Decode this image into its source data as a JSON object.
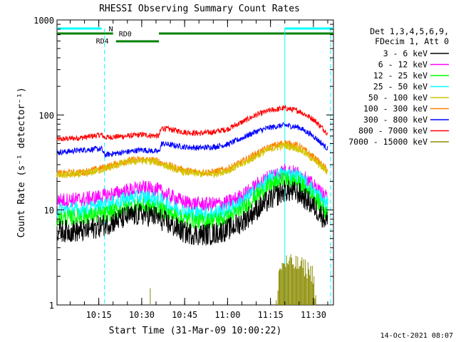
{
  "chart_data": {
    "type": "line",
    "title": "RHESSI Observing Summary Count Rates",
    "xlabel": "Start Time (31-Mar-09 10:00:22)",
    "ylabel": "Count Rate (s⁻¹ detector⁻¹)",
    "yscale": "log",
    "ylim": [
      1,
      1000
    ],
    "xlim_minutes_of_day": [
      600.4,
      697
    ],
    "x_ticks": [
      "10:15",
      "10:30",
      "10:45",
      "11:00",
      "11:15",
      "11:30"
    ],
    "y_ticks": [
      "1",
      "10",
      "100",
      "1000"
    ],
    "legend_header": [
      "Det 1,3,4,5,6,9,",
      "FDecim 1, Att 0"
    ],
    "legend_position": "right",
    "footer_date": "14-Oct-2021 08:07",
    "markers": {
      "n_label": "N",
      "rd0_label": "RD0",
      "rd4_label": "RD4",
      "cyan_dashed_times": [
        "10:17",
        "11:36"
      ],
      "cyan_solid_times": [
        "11:20"
      ]
    },
    "series": [
      {
        "name": "3 - 6 keV",
        "color": "#000000",
        "points": [
          [
            "10:00",
            6
          ],
          [
            "10:10",
            6
          ],
          [
            "10:17",
            7
          ],
          [
            "10:25",
            8.5
          ],
          [
            "10:30",
            9
          ],
          [
            "10:35",
            8.5
          ],
          [
            "10:40",
            7
          ],
          [
            "10:45",
            5.8
          ],
          [
            "10:50",
            5.5
          ],
          [
            "10:55",
            5.6
          ],
          [
            "11:00",
            6.2
          ],
          [
            "11:05",
            7.5
          ],
          [
            "11:10",
            10
          ],
          [
            "11:15",
            13
          ],
          [
            "11:20",
            16
          ],
          [
            "11:25",
            15
          ],
          [
            "11:30",
            11
          ],
          [
            "11:35",
            7.5
          ]
        ]
      },
      {
        "name": "6 - 12 keV",
        "color": "#ff00ff",
        "points": [
          [
            "10:00",
            12.5
          ],
          [
            "10:10",
            13
          ],
          [
            "10:17",
            14
          ],
          [
            "10:25",
            16
          ],
          [
            "10:30",
            17
          ],
          [
            "10:35",
            16.5
          ],
          [
            "10:40",
            14
          ],
          [
            "10:45",
            12
          ],
          [
            "10:50",
            11.5
          ],
          [
            "10:55",
            11.5
          ],
          [
            "11:00",
            12
          ],
          [
            "11:05",
            14
          ],
          [
            "11:10",
            18
          ],
          [
            "11:15",
            23
          ],
          [
            "11:20",
            26
          ],
          [
            "11:25",
            24
          ],
          [
            "11:30",
            18
          ],
          [
            "11:35",
            13
          ]
        ]
      },
      {
        "name": "12 - 25 keV",
        "color": "#00ff00",
        "points": [
          [
            "10:00",
            8
          ],
          [
            "10:10",
            8.5
          ],
          [
            "10:17",
            9
          ],
          [
            "10:25",
            10.5
          ],
          [
            "10:30",
            11
          ],
          [
            "10:35",
            10.5
          ],
          [
            "10:40",
            9
          ],
          [
            "10:45",
            8
          ],
          [
            "10:50",
            7.5
          ],
          [
            "10:55",
            7.8
          ],
          [
            "11:00",
            8.2
          ],
          [
            "11:05",
            10
          ],
          [
            "11:10",
            14
          ],
          [
            "11:15",
            18
          ],
          [
            "11:20",
            21
          ],
          [
            "11:25",
            19
          ],
          [
            "11:30",
            14
          ],
          [
            "11:35",
            9
          ]
        ]
      },
      {
        "name": "25 - 50 keV",
        "color": "#00ffff",
        "points": [
          [
            "10:00",
            10
          ],
          [
            "10:10",
            10
          ],
          [
            "10:17",
            11
          ],
          [
            "10:25",
            13
          ],
          [
            "10:30",
            13.5
          ],
          [
            "10:35",
            13
          ],
          [
            "10:40",
            11
          ],
          [
            "10:45",
            9.5
          ],
          [
            "10:50",
            9
          ],
          [
            "10:55",
            9.2
          ],
          [
            "11:00",
            10
          ],
          [
            "11:05",
            12
          ],
          [
            "11:10",
            16
          ],
          [
            "11:15",
            21
          ],
          [
            "11:20",
            24
          ],
          [
            "11:25",
            22
          ],
          [
            "11:30",
            16
          ],
          [
            "11:35",
            11
          ]
        ]
      },
      {
        "name": "50 - 100 keV",
        "color": "#d4c600",
        "points": [
          [
            "10:00",
            23
          ],
          [
            "10:10",
            24
          ],
          [
            "10:17",
            27
          ],
          [
            "10:25",
            32
          ],
          [
            "10:30",
            33
          ],
          [
            "10:35",
            32
          ],
          [
            "10:40",
            28
          ],
          [
            "10:45",
            25
          ],
          [
            "10:50",
            24
          ],
          [
            "10:55",
            24
          ],
          [
            "11:00",
            26
          ],
          [
            "11:05",
            30
          ],
          [
            "11:10",
            37
          ],
          [
            "11:15",
            44
          ],
          [
            "11:20",
            48
          ],
          [
            "11:25",
            44
          ],
          [
            "11:30",
            34
          ],
          [
            "11:35",
            25
          ]
        ]
      },
      {
        "name": "100 - 300 keV",
        "color": "#ff8000",
        "points": [
          [
            "10:00",
            24
          ],
          [
            "10:10",
            25
          ],
          [
            "10:17",
            28
          ],
          [
            "10:25",
            33
          ],
          [
            "10:30",
            34
          ],
          [
            "10:35",
            33
          ],
          [
            "10:40",
            29
          ],
          [
            "10:45",
            26
          ],
          [
            "10:50",
            25
          ],
          [
            "10:55",
            25
          ],
          [
            "11:00",
            27
          ],
          [
            "11:05",
            32
          ],
          [
            "11:10",
            39
          ],
          [
            "11:15",
            46
          ],
          [
            "11:20",
            51
          ],
          [
            "11:25",
            47
          ],
          [
            "11:30",
            36
          ],
          [
            "11:35",
            26
          ]
        ]
      },
      {
        "name": "300 - 800 keV",
        "color": "#0000ff",
        "points": [
          [
            "10:00",
            40
          ],
          [
            "10:10",
            43
          ],
          [
            "10:16",
            44
          ],
          [
            "10:17",
            38
          ],
          [
            "10:25",
            41
          ],
          [
            "10:30",
            43
          ],
          [
            "10:36",
            41
          ],
          [
            "10:37",
            50
          ],
          [
            "10:45",
            46
          ],
          [
            "10:50",
            45
          ],
          [
            "10:55",
            46
          ],
          [
            "11:00",
            49
          ],
          [
            "11:05",
            57
          ],
          [
            "11:10",
            67
          ],
          [
            "11:15",
            74
          ],
          [
            "11:20",
            78
          ],
          [
            "11:25",
            74
          ],
          [
            "11:30",
            60
          ],
          [
            "11:35",
            44
          ]
        ]
      },
      {
        "name": "800 - 7000 keV",
        "color": "#ff0000",
        "points": [
          [
            "10:00",
            55
          ],
          [
            "10:10",
            58
          ],
          [
            "10:16",
            62
          ],
          [
            "10:17",
            58
          ],
          [
            "10:25",
            60
          ],
          [
            "10:30",
            62
          ],
          [
            "10:36",
            60
          ],
          [
            "10:37",
            73
          ],
          [
            "10:45",
            66
          ],
          [
            "10:50",
            64
          ],
          [
            "10:55",
            66
          ],
          [
            "11:00",
            71
          ],
          [
            "11:05",
            84
          ],
          [
            "11:10",
            100
          ],
          [
            "11:15",
            112
          ],
          [
            "11:20",
            118
          ],
          [
            "11:25",
            110
          ],
          [
            "11:30",
            90
          ],
          [
            "11:35",
            64
          ]
        ]
      },
      {
        "name": "7000 - 15000 keV",
        "color": "#8b8b00",
        "points": [
          [
            "11:17",
            1
          ],
          [
            "11:18",
            2.4
          ],
          [
            "11:20",
            2.9
          ],
          [
            "11:24",
            2.8
          ],
          [
            "11:27",
            2.6
          ],
          [
            "11:30",
            2.2
          ],
          [
            "11:31",
            1
          ]
        ]
      }
    ]
  }
}
